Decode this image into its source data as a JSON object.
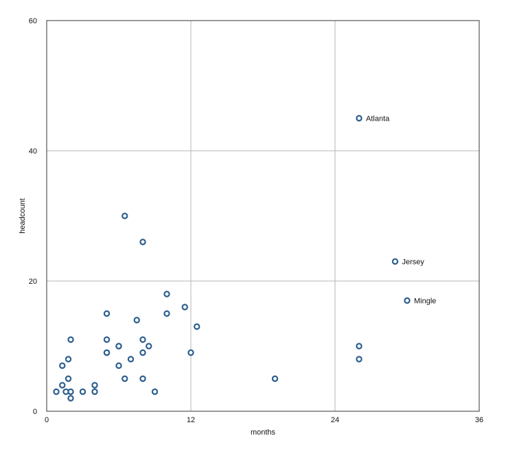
{
  "chart_data": {
    "type": "scatter",
    "title": "",
    "xlabel": "months",
    "ylabel": "headcount",
    "xlim": [
      0,
      36
    ],
    "ylim": [
      0,
      60
    ],
    "xticks": [
      0,
      12,
      24,
      36
    ],
    "yticks": [
      0,
      20,
      40,
      60
    ],
    "grid": true,
    "marker_color": "#2d5f8f",
    "series": [
      {
        "points": [
          {
            "x": 0.8,
            "y": 3
          },
          {
            "x": 1.3,
            "y": 4
          },
          {
            "x": 1.3,
            "y": 7
          },
          {
            "x": 1.6,
            "y": 3
          },
          {
            "x": 1.8,
            "y": 5
          },
          {
            "x": 1.8,
            "y": 8
          },
          {
            "x": 2.0,
            "y": 11
          },
          {
            "x": 2.0,
            "y": 3
          },
          {
            "x": 2.0,
            "y": 2
          },
          {
            "x": 3.0,
            "y": 3
          },
          {
            "x": 4.0,
            "y": 4
          },
          {
            "x": 4.0,
            "y": 3
          },
          {
            "x": 5.0,
            "y": 15
          },
          {
            "x": 5.0,
            "y": 11
          },
          {
            "x": 5.0,
            "y": 9
          },
          {
            "x": 5.0,
            "y": 9
          },
          {
            "x": 6.0,
            "y": 10
          },
          {
            "x": 6.0,
            "y": 10
          },
          {
            "x": 6.0,
            "y": 7
          },
          {
            "x": 6.5,
            "y": 30
          },
          {
            "x": 6.5,
            "y": 5
          },
          {
            "x": 7.0,
            "y": 8
          },
          {
            "x": 7.5,
            "y": 14
          },
          {
            "x": 8.0,
            "y": 26
          },
          {
            "x": 8.0,
            "y": 11
          },
          {
            "x": 8.0,
            "y": 9
          },
          {
            "x": 8.0,
            "y": 5
          },
          {
            "x": 8.5,
            "y": 10
          },
          {
            "x": 9.0,
            "y": 3
          },
          {
            "x": 10.0,
            "y": 18
          },
          {
            "x": 10.0,
            "y": 15
          },
          {
            "x": 11.5,
            "y": 16
          },
          {
            "x": 12.0,
            "y": 9
          },
          {
            "x": 12.5,
            "y": 13
          },
          {
            "x": 19.0,
            "y": 5
          },
          {
            "x": 26.0,
            "y": 45,
            "label": "Atlanta"
          },
          {
            "x": 26.0,
            "y": 10
          },
          {
            "x": 26.0,
            "y": 8
          },
          {
            "x": 29.0,
            "y": 23,
            "label": "Jersey"
          },
          {
            "x": 30.0,
            "y": 17,
            "label": "Mingle"
          }
        ]
      }
    ]
  }
}
